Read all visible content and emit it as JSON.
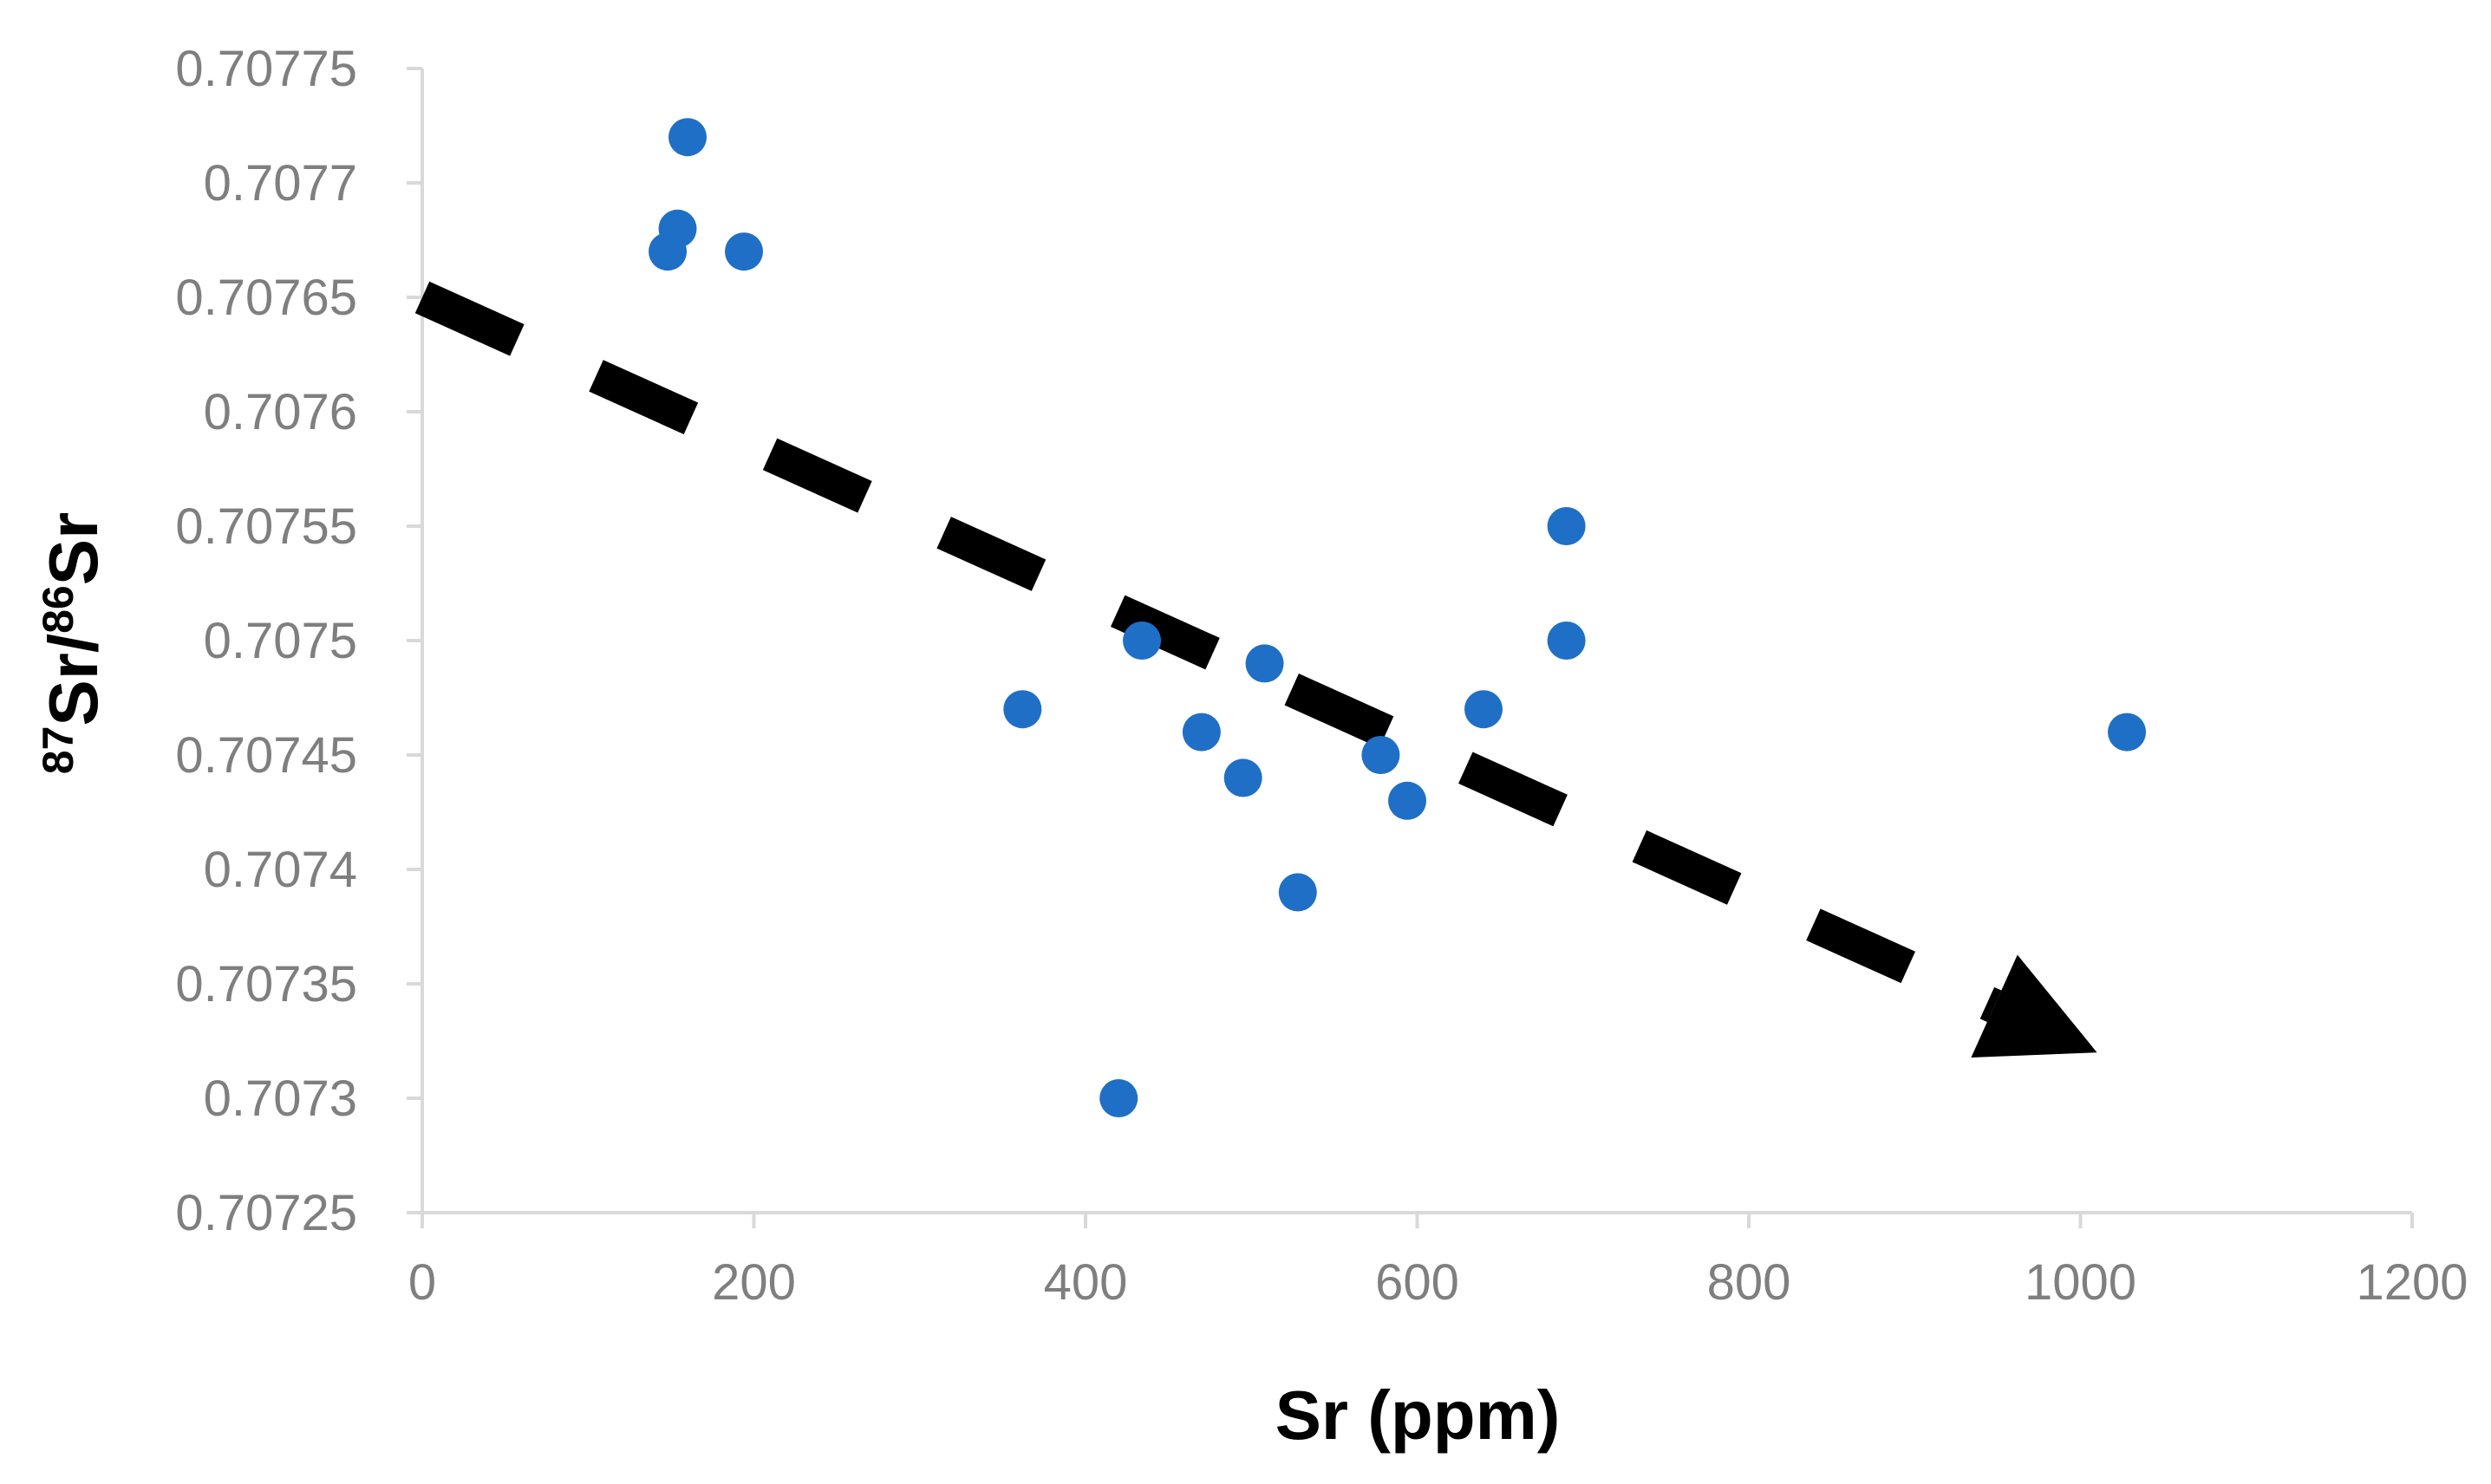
{
  "chart_data": {
    "type": "scatter",
    "title": "",
    "xlabel": "Sr (ppm)",
    "ylabel": {
      "sup1": "87",
      "part1": "Sr/",
      "sup2": "86",
      "part2": "Sr"
    },
    "xlim": [
      0,
      1200
    ],
    "ylim": [
      0.70725,
      0.70775
    ],
    "x_ticks": [
      "0",
      "200",
      "400",
      "600",
      "800",
      "1000",
      "1200"
    ],
    "y_ticks": [
      "0.70725",
      "0.7073",
      "0.70735",
      "0.7074",
      "0.70745",
      "0.7075",
      "0.70755",
      "0.7076",
      "0.70765",
      "0.7077",
      "0.70775"
    ],
    "grid": false,
    "legend": "none",
    "series": [
      {
        "marker_color": "#1f6fc6",
        "points": [
          {
            "x": 160,
            "y": 0.70772
          },
          {
            "x": 154,
            "y": 0.70768
          },
          {
            "x": 148,
            "y": 0.70767
          },
          {
            "x": 194,
            "y": 0.70767
          },
          {
            "x": 362,
            "y": 0.70747
          },
          {
            "x": 420,
            "y": 0.7073
          },
          {
            "x": 434,
            "y": 0.7075
          },
          {
            "x": 470,
            "y": 0.70746
          },
          {
            "x": 495,
            "y": 0.70744
          },
          {
            "x": 508,
            "y": 0.70749
          },
          {
            "x": 528,
            "y": 0.70739
          },
          {
            "x": 578,
            "y": 0.70745
          },
          {
            "x": 594,
            "y": 0.70743
          },
          {
            "x": 640,
            "y": 0.70747
          },
          {
            "x": 690,
            "y": 0.70755
          },
          {
            "x": 690,
            "y": 0.7075
          },
          {
            "x": 1028,
            "y": 0.70746
          }
        ]
      }
    ],
    "trend_arrow": {
      "style": "dashed",
      "color": "#000000",
      "start": {
        "x": 0,
        "y": 0.70765
      },
      "end": {
        "x": 1010,
        "y": 0.70732
      }
    },
    "axis_color": "#d9d9d9"
  }
}
